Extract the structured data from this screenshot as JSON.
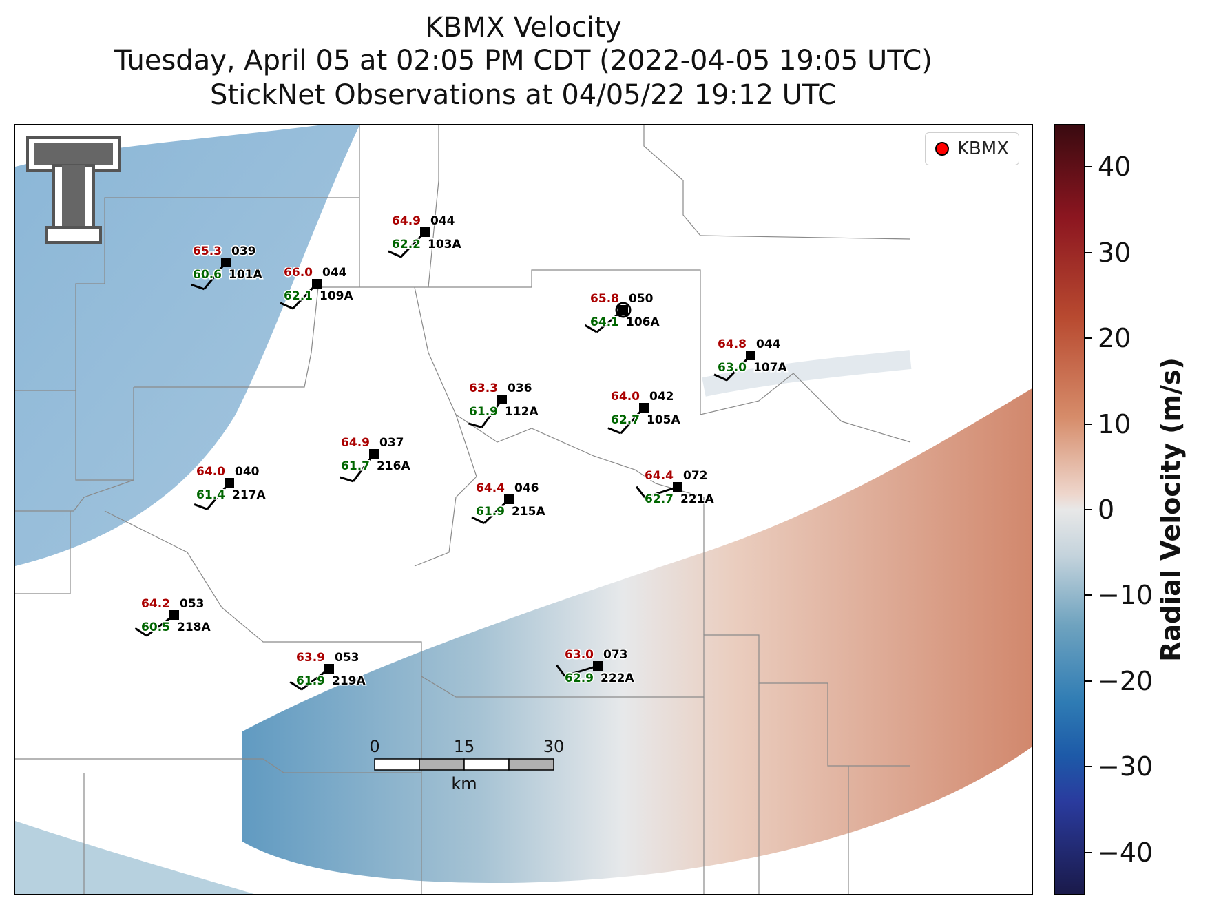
{
  "title": {
    "line1": "KBMX Velocity",
    "line2": "Tuesday, April 05 at 02:05 PM CDT (2022-04-05 19:05 UTC)",
    "line3": "StickNet Observations at 04/05/22 19:12 UTC"
  },
  "legend": {
    "label": "KBMX",
    "marker_color": "#ff0000"
  },
  "colorbar": {
    "label": "Radial Velocity (m/s)",
    "ticks": [
      "40",
      "30",
      "20",
      "10",
      "0",
      "−10",
      "−20",
      "−30",
      "−40"
    ],
    "range": [
      -45,
      45
    ]
  },
  "scalebar": {
    "labels": [
      "0",
      "15",
      "30"
    ],
    "unit": "km"
  },
  "colors": {
    "temp": "#aa0000",
    "dew": "#006600",
    "station": "#000000"
  },
  "stations": [
    {
      "id": "101A",
      "temp": "65.3",
      "dew": "60.6",
      "dir": "039"
    },
    {
      "id": "103A",
      "temp": "64.9",
      "dew": "62.2",
      "dir": "044"
    },
    {
      "id": "109A",
      "temp": "66.0",
      "dew": "62.1",
      "dir": "044"
    },
    {
      "id": "106A",
      "temp": "65.8",
      "dew": "64.1",
      "dir": "050"
    },
    {
      "id": "107A",
      "temp": "64.8",
      "dew": "63.0",
      "dir": "044"
    },
    {
      "id": "112A",
      "temp": "63.3",
      "dew": "61.9",
      "dir": "036"
    },
    {
      "id": "105A",
      "temp": "64.0",
      "dew": "62.7",
      "dir": "042"
    },
    {
      "id": "216A",
      "temp": "64.9",
      "dew": "61.7",
      "dir": "037"
    },
    {
      "id": "217A",
      "temp": "64.0",
      "dew": "61.4",
      "dir": "040"
    },
    {
      "id": "215A",
      "temp": "64.4",
      "dew": "61.9",
      "dir": "046"
    },
    {
      "id": "221A",
      "temp": "64.4",
      "dew": "62.7",
      "dir": "072"
    },
    {
      "id": "218A",
      "temp": "64.2",
      "dew": "60.5",
      "dir": "053"
    },
    {
      "id": "219A",
      "temp": "63.9",
      "dew": "61.9",
      "dir": "053"
    },
    {
      "id": "222A",
      "temp": "63.0",
      "dew": "62.9",
      "dir": "073"
    }
  ]
}
